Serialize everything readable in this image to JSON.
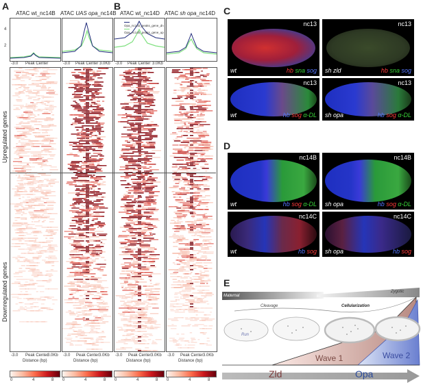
{
  "panels": {
    "a": "A",
    "b": "B",
    "c": "C",
    "d": "D",
    "e": "E"
  },
  "columns": [
    {
      "prefix": "ATAC ",
      "italic": "",
      "suffix": "wt_nc14B"
    },
    {
      "prefix": "ATAC ",
      "italic": "UAS opa",
      "suffix": "_nc14B"
    },
    {
      "prefix": "ATAC wt_nc14D",
      "italic": "",
      "suffix": ""
    },
    {
      "prefix": "ATAC ",
      "italic": "sh opa",
      "suffix": "_nc14D"
    }
  ],
  "profile_yticks": [
    "4",
    "2"
  ],
  "profile_axis": {
    "left": "-3.0",
    "center": "Peak Center",
    "right": "3.0Kb",
    "right_alt": "3.0Kb"
  },
  "legend": {
    "dn": "Opa_nc14b_peaks_gene_dn",
    "up": "Opa_nc14b_peaks_gene_up",
    "dn_color": "#1f2a7a",
    "up_color": "#7fe07f"
  },
  "row_labels": {
    "up": "Upregulated genes",
    "down": "Downregulated genes"
  },
  "distance_label": "Distance (bp)",
  "colorbar_ticks": [
    "0",
    "4",
    "8"
  ],
  "panel_c": {
    "e1": {
      "stage": "nc13",
      "geno": "wt",
      "stains": [
        {
          "t": "hb",
          "c": "#ff3b3b"
        },
        {
          "t": "sna",
          "c": "#39d339"
        },
        {
          "t": "sog",
          "c": "#5577ff"
        }
      ]
    },
    "e2": {
      "stage": "nc13",
      "geno": "sh zld",
      "stains": [
        {
          "t": "hb",
          "c": "#ff3b3b"
        },
        {
          "t": "sna",
          "c": "#39d339"
        },
        {
          "t": "sog",
          "c": "#5577ff"
        }
      ]
    },
    "e3": {
      "stage": "nc13",
      "geno": "wt",
      "stains": [
        {
          "t": "hb",
          "c": "#5577ff"
        },
        {
          "t": "sog",
          "c": "#ff3b3b"
        },
        {
          "t": "α-DL",
          "c": "#39d339"
        }
      ]
    },
    "e4": {
      "stage": "nc13",
      "geno": "sh opa",
      "stains": [
        {
          "t": "hb",
          "c": "#5577ff"
        },
        {
          "t": "sog",
          "c": "#ff3b3b"
        },
        {
          "t": "α-DL",
          "c": "#39d339"
        }
      ]
    }
  },
  "panel_d": {
    "e1": {
      "stage": "nc14B",
      "geno": "wt",
      "stains": [
        {
          "t": "hb",
          "c": "#5577ff"
        },
        {
          "t": "sog",
          "c": "#ff3b3b"
        },
        {
          "t": "α-DL",
          "c": "#39d339"
        }
      ]
    },
    "e2": {
      "stage": "nc14B",
      "geno": "sh opa",
      "stains": [
        {
          "t": "hb",
          "c": "#5577ff"
        },
        {
          "t": "sog",
          "c": "#ff3b3b"
        },
        {
          "t": "α-DL",
          "c": "#39d339"
        }
      ]
    },
    "e3": {
      "stage": "nc14C",
      "geno": "wt",
      "stains": [
        {
          "t": "hb",
          "c": "#5577ff"
        },
        {
          "t": "sog",
          "c": "#ff3b3b"
        }
      ]
    },
    "e4": {
      "stage": "nc14C",
      "geno": "sh opa",
      "stains": [
        {
          "t": "hb",
          "c": "#5577ff"
        },
        {
          "t": "sog",
          "c": "#ff3b3b"
        }
      ]
    }
  },
  "panel_e": {
    "maternal": "Maternal",
    "zygotic": "Zygotic",
    "cleavage": "Cleavage",
    "cellularization": "Cellularization",
    "run": "Run",
    "wave1": "Wave 1",
    "wave2": "Wave 2",
    "zld": "Zld",
    "opa": "Opa"
  }
}
